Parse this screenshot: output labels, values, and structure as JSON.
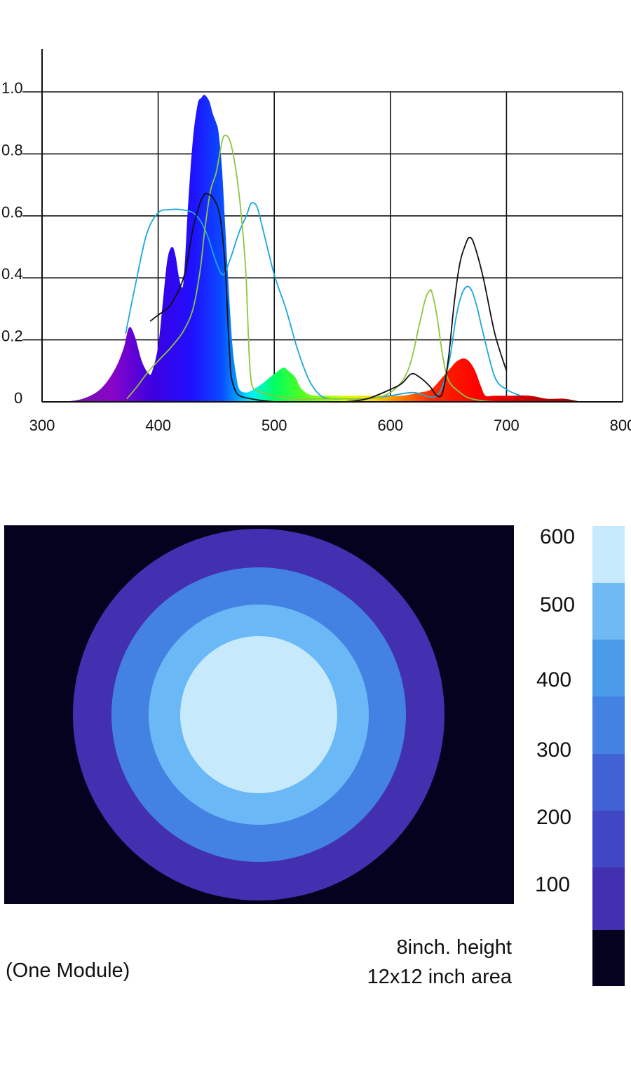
{
  "chart_data": [
    {
      "type": "area",
      "title": "",
      "xlabel": "",
      "ylabel": "",
      "xlim": [
        300,
        800
      ],
      "ylim": [
        0,
        1.05
      ],
      "x_ticks": [
        "300",
        "400",
        "500",
        "600",
        "700",
        "800"
      ],
      "y_ticks": [
        "0",
        "0.2",
        "0.4",
        "0.6",
        "0.8",
        "1.0"
      ],
      "grid": true,
      "filled_spectrum": {
        "x": [
          318,
          335,
          350,
          362,
          370,
          375,
          380,
          386,
          392,
          395,
          400,
          404,
          408,
          412,
          415,
          418,
          421,
          423,
          426,
          430,
          434,
          437,
          440,
          444,
          447,
          450,
          452,
          455,
          458,
          461,
          464,
          467,
          470,
          476,
          482,
          490,
          500,
          508,
          512,
          518,
          522,
          527,
          535,
          550,
          570,
          590,
          610,
          625,
          635,
          645,
          652,
          657,
          663,
          668,
          673,
          678,
          682,
          690,
          705,
          720,
          735,
          750,
          765
        ],
        "y": [
          0.0,
          0.01,
          0.04,
          0.1,
          0.17,
          0.24,
          0.21,
          0.13,
          0.09,
          0.1,
          0.18,
          0.32,
          0.46,
          0.5,
          0.47,
          0.4,
          0.37,
          0.45,
          0.65,
          0.85,
          0.96,
          0.98,
          0.99,
          0.97,
          0.93,
          0.9,
          0.87,
          0.75,
          0.55,
          0.35,
          0.18,
          0.09,
          0.04,
          0.03,
          0.04,
          0.06,
          0.09,
          0.11,
          0.1,
          0.08,
          0.05,
          0.03,
          0.02,
          0.02,
          0.02,
          0.02,
          0.02,
          0.03,
          0.04,
          0.08,
          0.11,
          0.13,
          0.14,
          0.13,
          0.1,
          0.05,
          0.02,
          0.02,
          0.02,
          0.02,
          0.01,
          0.01,
          0.0
        ]
      },
      "series": [
        {
          "color": "#1aa6e0",
          "x": [
            372,
            380,
            390,
            400,
            410,
            420,
            430,
            437,
            443,
            450,
            456,
            462,
            470,
            476,
            480,
            485,
            490,
            500,
            510,
            520,
            530,
            540,
            550,
            560,
            580,
            600,
            620,
            640,
            650,
            656,
            660,
            665,
            670,
            675,
            680,
            690,
            700,
            712
          ],
          "y": [
            0.22,
            0.37,
            0.54,
            0.61,
            0.62,
            0.62,
            0.61,
            0.58,
            0.53,
            0.45,
            0.41,
            0.46,
            0.55,
            0.6,
            0.64,
            0.63,
            0.56,
            0.41,
            0.3,
            0.17,
            0.07,
            0.02,
            0.01,
            0.01,
            0.01,
            0.02,
            0.03,
            0.02,
            0.12,
            0.26,
            0.33,
            0.37,
            0.36,
            0.3,
            0.22,
            0.08,
            0.04,
            0.02
          ]
        },
        {
          "color": "#8cc63f",
          "x": [
            373,
            382,
            392,
            402,
            412,
            422,
            430,
            436,
            440,
            445,
            450,
            455,
            458,
            462,
            466,
            470,
            474,
            476,
            478,
            480,
            483,
            490,
            500,
            520,
            540,
            560,
            580,
            600,
            615,
            625,
            630,
            634,
            636,
            640,
            645,
            650,
            660,
            670,
            690,
            710
          ],
          "y": [
            0.01,
            0.05,
            0.1,
            0.14,
            0.18,
            0.23,
            0.3,
            0.42,
            0.55,
            0.68,
            0.74,
            0.84,
            0.86,
            0.84,
            0.77,
            0.66,
            0.5,
            0.38,
            0.18,
            0.07,
            0.04,
            0.03,
            0.02,
            0.01,
            0.01,
            0.01,
            0.01,
            0.03,
            0.1,
            0.25,
            0.33,
            0.36,
            0.35,
            0.28,
            0.15,
            0.07,
            0.03,
            0.01,
            0.0,
            0.0
          ]
        },
        {
          "color": "#111111",
          "x": [
            393,
            400,
            410,
            420,
            425,
            430,
            436,
            440,
            443,
            447,
            452,
            455,
            458,
            460,
            462,
            463,
            466,
            470,
            480,
            500,
            520,
            540,
            560,
            580,
            600,
            610,
            618,
            625,
            634,
            640,
            645,
            650,
            655,
            660,
            665,
            668,
            672,
            680,
            690,
            700
          ],
          "y": [
            0.26,
            0.28,
            0.31,
            0.38,
            0.45,
            0.56,
            0.64,
            0.67,
            0.67,
            0.66,
            0.62,
            0.55,
            0.42,
            0.26,
            0.12,
            0.08,
            0.04,
            0.02,
            0.01,
            0.0,
            0.0,
            0.0,
            0.0,
            0.01,
            0.04,
            0.06,
            0.09,
            0.08,
            0.05,
            0.02,
            0.03,
            0.14,
            0.32,
            0.45,
            0.51,
            0.53,
            0.51,
            0.4,
            0.22,
            0.1
          ]
        }
      ]
    },
    {
      "type": "heatmap",
      "caption": "(One Module)",
      "height_label": "8inch. height",
      "area_label": "12x12 inch area",
      "scale_labels": [
        "600",
        "500",
        "400",
        "300",
        "200",
        "100"
      ],
      "scale_colors": [
        "#c6e9fb",
        "#6fbaf4",
        "#4a9cea",
        "#4382e2",
        "#4062d4",
        "#4146c4",
        "#4330b0",
        "#05021f"
      ],
      "rings": [
        {
          "level": 100,
          "color": "#4330b0"
        },
        {
          "level": 300,
          "color": "#4382e2"
        },
        {
          "level": 500,
          "color": "#6ab8f6"
        },
        {
          "level": 600,
          "color": "#c6e9fb"
        }
      ],
      "background_color": "#05021f"
    }
  ]
}
